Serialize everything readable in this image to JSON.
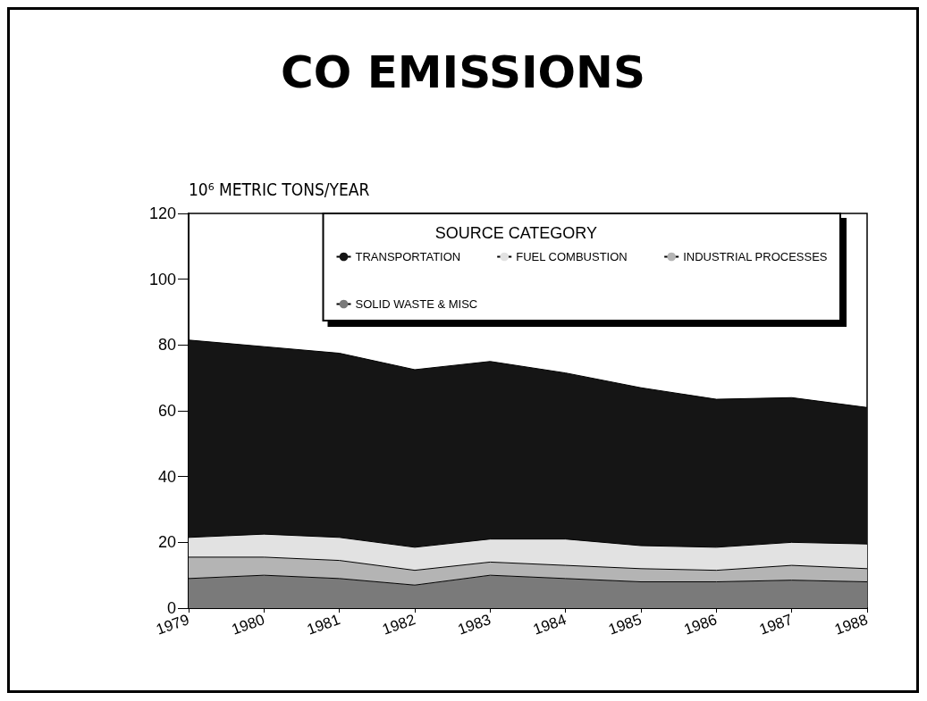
{
  "chart_data": {
    "type": "area",
    "title": "CO EMISSIONS",
    "ylabel": "10⁶ METRIC TONS/YEAR",
    "legend_title": "SOURCE CATEGORY",
    "categories": [
      "1979",
      "1980",
      "1981",
      "1982",
      "1983",
      "1984",
      "1985",
      "1986",
      "1987",
      "1988"
    ],
    "stacked": true,
    "series": [
      {
        "name": "SOLID WASTE & MISC",
        "color": "#7a7a7a",
        "values": [
          9,
          10,
          9,
          7,
          10,
          9,
          8,
          8,
          8.5,
          8
        ]
      },
      {
        "name": "INDUSTRIAL PROCESSES",
        "color": "#b4b4b4",
        "values": [
          6.5,
          5.5,
          5.5,
          4.5,
          4,
          4,
          4,
          3.5,
          4.5,
          4
        ]
      },
      {
        "name": "FUEL COMBUSTION",
        "color": "#e2e2e2",
        "values": [
          6,
          7,
          7,
          7,
          7,
          8,
          7,
          7,
          7,
          7.5
        ]
      },
      {
        "name": "TRANSPORTATION",
        "color": "#151515",
        "values": [
          60,
          57,
          56,
          54,
          54,
          50.5,
          48,
          45,
          44,
          41.5
        ]
      }
    ],
    "ylim": [
      0,
      120
    ],
    "yticks": [
      0,
      20,
      40,
      60,
      80,
      100,
      120
    ],
    "grid": false,
    "legend": "top right"
  }
}
